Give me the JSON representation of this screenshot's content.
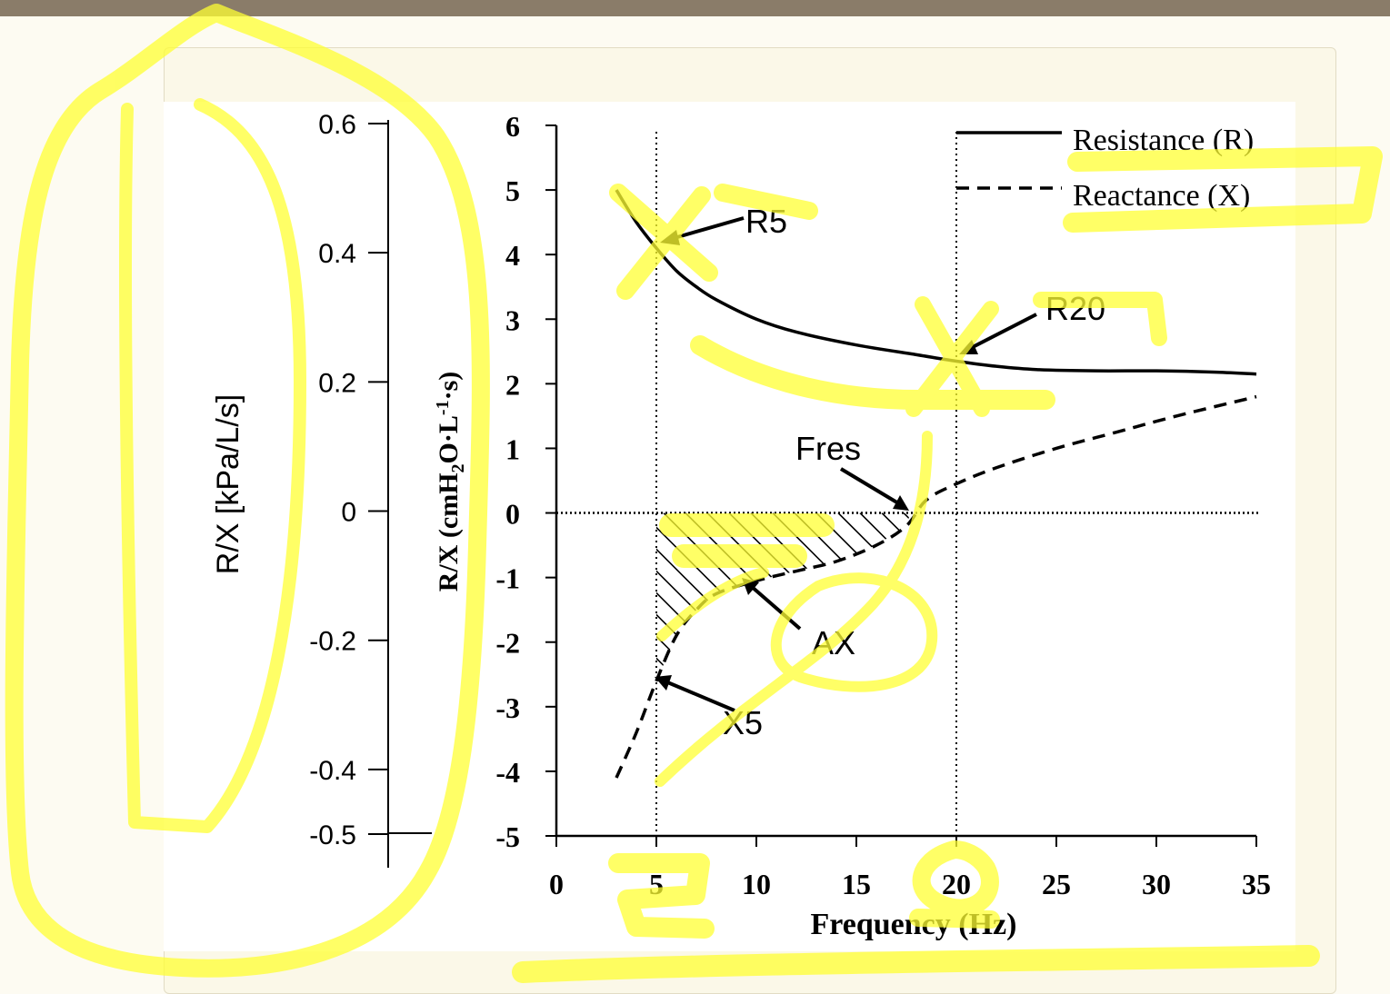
{
  "chart_data": {
    "type": "line",
    "xlabel": "Frequency (Hz)",
    "ylabel": "R/X (cmH2O·L⁻¹·s)",
    "ylabel_parts": {
      "pre": "R/X (cmH",
      "sub": "2",
      "mid": "O·L",
      "sup": "-1",
      "post": "·s)"
    },
    "y2label": "R/X [kPa/L/s]",
    "xlim": [
      0,
      35
    ],
    "ylim": [
      -5,
      6
    ],
    "y2lim": [
      -0.5,
      0.6
    ],
    "x_ticks": [
      "0",
      "5",
      "10",
      "15",
      "20",
      "25",
      "30",
      "35"
    ],
    "y_ticks": [
      "6",
      "5",
      "4",
      "3",
      "2",
      "1",
      "0",
      "-1",
      "-2",
      "-3",
      "-4",
      "-5"
    ],
    "y2_ticks": [
      "0.6",
      "0.4",
      "0.2",
      "0",
      "-0.2",
      "-0.4",
      "-0.5"
    ],
    "legend_position": "top-right",
    "series": [
      {
        "name": "Resistance (R)",
        "style": "solid",
        "x": [
          3,
          4,
          5,
          6,
          7,
          8,
          10,
          12,
          15,
          18,
          20,
          22,
          24,
          27,
          30,
          33,
          35
        ],
        "values": [
          5.0,
          4.5,
          4.1,
          3.75,
          3.5,
          3.3,
          3.0,
          2.8,
          2.6,
          2.45,
          2.35,
          2.27,
          2.22,
          2.2,
          2.2,
          2.18,
          2.15
        ]
      },
      {
        "name": "Reactance (X)",
        "style": "dashed",
        "x": [
          3,
          4,
          5,
          6,
          7,
          8,
          10,
          12,
          14,
          16,
          17.5,
          18.5,
          20,
          22,
          25,
          28,
          31,
          35
        ],
        "values": [
          -4.1,
          -3.4,
          -2.6,
          -1.9,
          -1.5,
          -1.25,
          -1.05,
          -0.9,
          -0.75,
          -0.5,
          -0.2,
          0.2,
          0.45,
          0.7,
          1.0,
          1.25,
          1.5,
          1.8
        ]
      }
    ],
    "annotations": [
      {
        "label": "R5",
        "x": 5,
        "y": 4.1
      },
      {
        "label": "R20",
        "x": 20,
        "y": 2.35
      },
      {
        "label": "Fres",
        "x": 17.7,
        "y": 0
      },
      {
        "label": "AX",
        "x": 10,
        "y": -1.1
      },
      {
        "label": "X5",
        "x": 5,
        "y": -2.6
      }
    ],
    "reference_lines": {
      "vertical_x": [
        5,
        20
      ],
      "horizontal_y": [
        0
      ]
    },
    "shaded_area": {
      "label": "AX",
      "x_from": 5,
      "x_to": 17.7
    }
  },
  "colors": {
    "axis": "#000000",
    "highlight": "#ffff33",
    "topbar": "#8a7c69",
    "card_bg": "#fbf8e8"
  }
}
